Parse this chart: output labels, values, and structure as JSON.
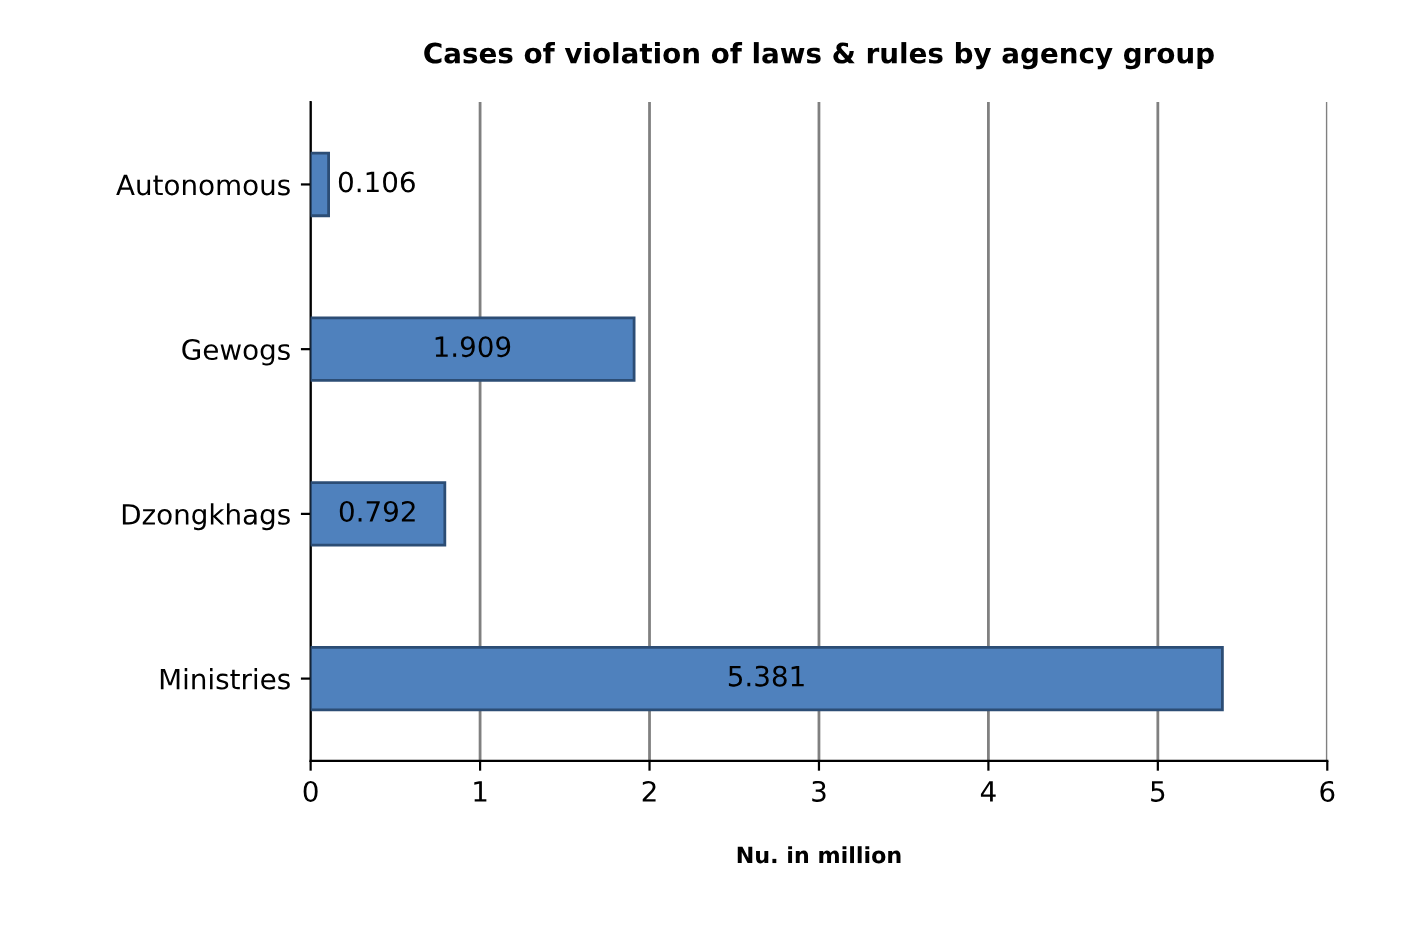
{
  "chart_data": {
    "type": "bar",
    "orientation": "horizontal",
    "title": "Cases of violation of laws & rules by agency group",
    "xlabel": "Nu. in million",
    "categories": [
      "Autonomous",
      "Gewogs",
      "Dzongkhags",
      "Ministries"
    ],
    "values": [
      0.106,
      1.909,
      0.792,
      5.381
    ],
    "color": "#4f81bd",
    "xlim": [
      0,
      6
    ],
    "xticks": [
      0,
      1,
      2,
      3,
      4,
      5,
      6
    ],
    "grid": "x",
    "data_labels": true
  }
}
